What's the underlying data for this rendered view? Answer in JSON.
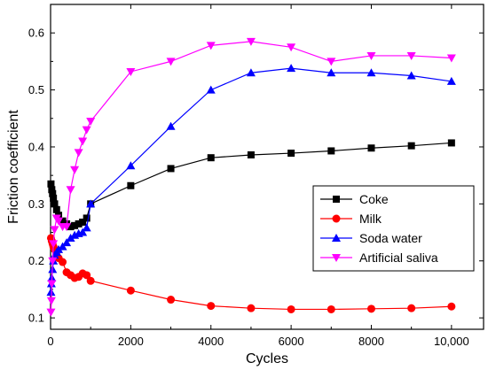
{
  "chart_data": {
    "type": "line",
    "title": "",
    "xlabel": "Cycles",
    "ylabel": "Friction coefficient",
    "xlim": [
      0,
      10800
    ],
    "ylim": [
      0.08,
      0.65
    ],
    "xticks": [
      0,
      2000,
      4000,
      6000,
      8000,
      10000
    ],
    "xtick_labels": [
      "0",
      "2000",
      "4000",
      "6000",
      "8000",
      "10,000"
    ],
    "yticks": [
      0.1,
      0.2,
      0.3,
      0.4,
      0.5,
      0.6
    ],
    "ytick_labels": [
      "0.1",
      "0.2",
      "0.3",
      "0.4",
      "0.5",
      "0.6"
    ],
    "grid": false,
    "legend_position": "right",
    "series": [
      {
        "name": "Coke",
        "color": "#000000",
        "marker": "square",
        "x": [
          10,
          30,
          50,
          70,
          100,
          150,
          200,
          300,
          400,
          500,
          600,
          700,
          800,
          900,
          1000,
          2000,
          3000,
          4000,
          5000,
          6000,
          7000,
          8000,
          9000,
          10000
        ],
        "y": [
          0.335,
          0.325,
          0.318,
          0.31,
          0.3,
          0.29,
          0.28,
          0.27,
          0.265,
          0.26,
          0.262,
          0.265,
          0.268,
          0.275,
          0.3,
          0.332,
          0.362,
          0.381,
          0.386,
          0.389,
          0.393,
          0.398,
          0.402,
          0.407
        ]
      },
      {
        "name": "Milk",
        "color": "#ff0000",
        "marker": "circle",
        "x": [
          10,
          30,
          50,
          70,
          100,
          150,
          200,
          300,
          400,
          500,
          600,
          700,
          800,
          900,
          1000,
          2000,
          3000,
          4000,
          5000,
          6000,
          7000,
          8000,
          9000,
          10000
        ],
        "y": [
          0.24,
          0.235,
          0.23,
          0.225,
          0.22,
          0.21,
          0.205,
          0.198,
          0.18,
          0.175,
          0.17,
          0.172,
          0.178,
          0.175,
          0.165,
          0.148,
          0.132,
          0.121,
          0.117,
          0.115,
          0.115,
          0.116,
          0.117,
          0.12
        ]
      },
      {
        "name": "Soda water",
        "color": "#0000ff",
        "marker": "triangle-up",
        "x": [
          10,
          20,
          30,
          50,
          70,
          100,
          150,
          200,
          300,
          400,
          500,
          600,
          700,
          800,
          900,
          1000,
          2000,
          3000,
          4000,
          5000,
          6000,
          7000,
          8000,
          9000,
          10000
        ],
        "y": [
          0.145,
          0.16,
          0.17,
          0.185,
          0.2,
          0.21,
          0.215,
          0.22,
          0.225,
          0.232,
          0.24,
          0.245,
          0.248,
          0.25,
          0.258,
          0.3,
          0.367,
          0.436,
          0.5,
          0.53,
          0.538,
          0.53,
          0.53,
          0.525,
          0.515
        ]
      },
      {
        "name": "Artificial saliva",
        "color": "#ff00ff",
        "marker": "triangle-down",
        "x": [
          10,
          20,
          30,
          50,
          70,
          100,
          150,
          200,
          300,
          400,
          500,
          600,
          700,
          800,
          900,
          1000,
          2000,
          3000,
          4000,
          5000,
          6000,
          7000,
          8000,
          9000,
          10000
        ],
        "y": [
          0.11,
          0.13,
          0.16,
          0.2,
          0.23,
          0.255,
          0.275,
          0.27,
          0.26,
          0.26,
          0.325,
          0.36,
          0.39,
          0.41,
          0.43,
          0.445,
          0.532,
          0.55,
          0.578,
          0.585,
          0.575,
          0.55,
          0.56,
          0.56,
          0.556
        ]
      }
    ]
  }
}
